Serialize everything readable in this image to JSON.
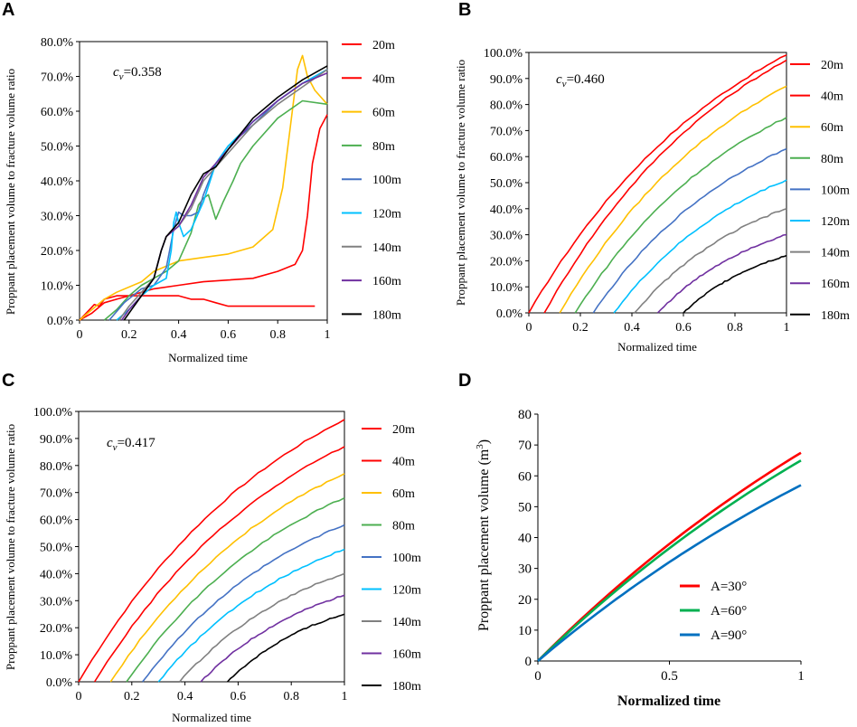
{
  "chart_data": [
    {
      "panel": "A",
      "type": "line",
      "annotation": "cv=0.358",
      "annotation_main": "c",
      "annotation_sub": "v",
      "annotation_rest": "=0.358",
      "xlabel": "Normalized time",
      "ylabel": "Proppant placement volume to fracture volume ratio",
      "xlim": [
        0,
        1
      ],
      "ylim": [
        0,
        80
      ],
      "xticks": [
        "0",
        "0.2",
        "0.4",
        "0.6",
        "0.8",
        "1"
      ],
      "yticks": [
        "0.0%",
        "10.0%",
        "20.0%",
        "30.0%",
        "40.0%",
        "50.0%",
        "60.0%",
        "70.0%",
        "80.0%"
      ],
      "series": [
        {
          "name": "20m",
          "color": "#ff0000",
          "points": [
            [
              0,
              0
            ],
            [
              0.04,
              3
            ],
            [
              0.06,
              4.5
            ],
            [
              0.08,
              4
            ],
            [
              0.1,
              6
            ],
            [
              0.15,
              7
            ],
            [
              0.3,
              7
            ],
            [
              0.4,
              7
            ],
            [
              0.45,
              6
            ],
            [
              0.5,
              6
            ],
            [
              0.55,
              5
            ],
            [
              0.6,
              4
            ],
            [
              0.7,
              4
            ],
            [
              0.8,
              4
            ],
            [
              0.95,
              4
            ]
          ]
        },
        {
          "name": "40m",
          "color": "#ff0000",
          "points": [
            [
              0,
              0
            ],
            [
              0.05,
              2
            ],
            [
              0.1,
              5
            ],
            [
              0.15,
              6
            ],
            [
              0.2,
              7
            ],
            [
              0.3,
              9
            ],
            [
              0.4,
              10
            ],
            [
              0.5,
              11
            ],
            [
              0.6,
              11.5
            ],
            [
              0.7,
              12
            ],
            [
              0.8,
              14
            ],
            [
              0.87,
              16
            ],
            [
              0.9,
              20
            ],
            [
              0.92,
              30
            ],
            [
              0.94,
              45
            ],
            [
              0.97,
              55
            ],
            [
              1,
              59
            ]
          ]
        },
        {
          "name": "60m",
          "color": "#ffc000",
          "points": [
            [
              0,
              0
            ],
            [
              0.05,
              3
            ],
            [
              0.1,
              6
            ],
            [
              0.15,
              8
            ],
            [
              0.25,
              11
            ],
            [
              0.3,
              14
            ],
            [
              0.4,
              17
            ],
            [
              0.5,
              18
            ],
            [
              0.6,
              19
            ],
            [
              0.7,
              21
            ],
            [
              0.78,
              26
            ],
            [
              0.82,
              38
            ],
            [
              0.85,
              55
            ],
            [
              0.88,
              72
            ],
            [
              0.9,
              76
            ],
            [
              0.92,
              70
            ],
            [
              0.95,
              66
            ],
            [
              1,
              62
            ]
          ]
        },
        {
          "name": "80m",
          "color": "#4caf50",
          "points": [
            [
              0.1,
              0
            ],
            [
              0.15,
              3
            ],
            [
              0.2,
              7
            ],
            [
              0.25,
              10
            ],
            [
              0.3,
              12
            ],
            [
              0.35,
              14
            ],
            [
              0.4,
              17
            ],
            [
              0.45,
              25
            ],
            [
              0.48,
              33
            ],
            [
              0.5,
              35
            ],
            [
              0.52,
              36
            ],
            [
              0.55,
              29
            ],
            [
              0.58,
              34
            ],
            [
              0.62,
              40
            ],
            [
              0.65,
              45
            ],
            [
              0.7,
              50
            ],
            [
              0.8,
              58
            ],
            [
              0.9,
              63
            ],
            [
              1,
              62
            ]
          ]
        },
        {
          "name": "100m",
          "color": "#4472c4",
          "points": [
            [
              0.12,
              0
            ],
            [
              0.18,
              5
            ],
            [
              0.25,
              9
            ],
            [
              0.3,
              10
            ],
            [
              0.35,
              15
            ],
            [
              0.38,
              26
            ],
            [
              0.4,
              31
            ],
            [
              0.42,
              30
            ],
            [
              0.45,
              30
            ],
            [
              0.48,
              31
            ],
            [
              0.5,
              36
            ],
            [
              0.55,
              45
            ],
            [
              0.6,
              50
            ],
            [
              0.7,
              56
            ],
            [
              0.8,
              63
            ],
            [
              0.9,
              68
            ],
            [
              1,
              72
            ]
          ]
        },
        {
          "name": "120m",
          "color": "#00c0ff",
          "points": [
            [
              0.15,
              0
            ],
            [
              0.2,
              3
            ],
            [
              0.25,
              7
            ],
            [
              0.3,
              10
            ],
            [
              0.35,
              12
            ],
            [
              0.37,
              20
            ],
            [
              0.38,
              28
            ],
            [
              0.39,
              31
            ],
            [
              0.4,
              28
            ],
            [
              0.42,
              24
            ],
            [
              0.45,
              26
            ],
            [
              0.5,
              34
            ],
            [
              0.55,
              45
            ],
            [
              0.6,
              50
            ],
            [
              0.7,
              57
            ],
            [
              0.8,
              63
            ],
            [
              0.9,
              68
            ],
            [
              1,
              72
            ]
          ]
        },
        {
          "name": "140m",
          "color": "#808080",
          "points": [
            [
              0.16,
              0
            ],
            [
              0.2,
              4
            ],
            [
              0.25,
              8
            ],
            [
              0.3,
              12
            ],
            [
              0.33,
              20
            ],
            [
              0.35,
              24
            ],
            [
              0.4,
              27
            ],
            [
              0.45,
              32
            ],
            [
              0.5,
              40
            ],
            [
              0.55,
              44
            ],
            [
              0.6,
              48
            ],
            [
              0.7,
              56
            ],
            [
              0.8,
              62
            ],
            [
              0.9,
              67
            ],
            [
              1,
              72
            ]
          ]
        },
        {
          "name": "160m",
          "color": "#7030a0",
          "points": [
            [
              0.17,
              0
            ],
            [
              0.2,
              3
            ],
            [
              0.25,
              7
            ],
            [
              0.3,
              12
            ],
            [
              0.33,
              20
            ],
            [
              0.35,
              24
            ],
            [
              0.4,
              27
            ],
            [
              0.45,
              33
            ],
            [
              0.5,
              41
            ],
            [
              0.55,
              45
            ],
            [
              0.6,
              49
            ],
            [
              0.7,
              57
            ],
            [
              0.8,
              63
            ],
            [
              0.9,
              68
            ],
            [
              1,
              71
            ]
          ]
        },
        {
          "name": "180m",
          "color": "#000000",
          "points": [
            [
              0.18,
              0
            ],
            [
              0.21,
              3
            ],
            [
              0.25,
              7
            ],
            [
              0.3,
              12
            ],
            [
              0.33,
              20
            ],
            [
              0.35,
              24
            ],
            [
              0.4,
              28
            ],
            [
              0.45,
              36
            ],
            [
              0.5,
              42
            ],
            [
              0.55,
              44
            ],
            [
              0.6,
              49
            ],
            [
              0.7,
              58
            ],
            [
              0.8,
              64
            ],
            [
              0.9,
              69
            ],
            [
              1,
              73
            ]
          ]
        }
      ]
    },
    {
      "panel": "B",
      "type": "line",
      "annotation": "cv=0.460",
      "annotation_main": "c",
      "annotation_sub": "v",
      "annotation_rest": "=0.460",
      "xlabel": "Normalized time",
      "ylabel": "Proppant placement volume to fracture volume ratio",
      "xlim": [
        0,
        1
      ],
      "ylim": [
        0,
        100
      ],
      "xticks": [
        "0",
        "0.2",
        "0.4",
        "0.6",
        "0.8",
        "1"
      ],
      "yticks": [
        "0.0%",
        "10.0%",
        "20.0%",
        "30.0%",
        "40.0%",
        "50.0%",
        "60.0%",
        "70.0%",
        "80.0%",
        "90.0%",
        "100.0%"
      ],
      "series": [
        {
          "name": "20m",
          "color": "#ff0000",
          "start": 0.0,
          "end": 99
        },
        {
          "name": "40m",
          "color": "#ff0000",
          "start": 0.06,
          "end": 97
        },
        {
          "name": "60m",
          "color": "#ffc000",
          "start": 0.12,
          "end": 87
        },
        {
          "name": "80m",
          "color": "#4caf50",
          "start": 0.18,
          "end": 75
        },
        {
          "name": "100m",
          "color": "#4472c4",
          "start": 0.25,
          "end": 63
        },
        {
          "name": "120m",
          "color": "#00c0ff",
          "start": 0.33,
          "end": 51
        },
        {
          "name": "140m",
          "color": "#808080",
          "start": 0.41,
          "end": 40
        },
        {
          "name": "160m",
          "color": "#7030a0",
          "start": 0.5,
          "end": 30
        },
        {
          "name": "180m",
          "color": "#000000",
          "start": 0.6,
          "end": 22
        }
      ]
    },
    {
      "panel": "C",
      "type": "line",
      "annotation": "cv=0.417",
      "annotation_main": "c",
      "annotation_sub": "v",
      "annotation_rest": "=0.417",
      "xlabel": "Normalized time",
      "ylabel": "Proppant placement volume to fracture volume ratio",
      "xlim": [
        0,
        1
      ],
      "ylim": [
        0,
        100
      ],
      "xticks": [
        "0",
        "0.2",
        "0.4",
        "0.6",
        "0.8",
        "1"
      ],
      "yticks": [
        "0.0%",
        "10.0%",
        "20.0%",
        "30.0%",
        "40.0%",
        "50.0%",
        "60.0%",
        "70.0%",
        "80.0%",
        "90.0%",
        "100.0%"
      ],
      "series": [
        {
          "name": "20m",
          "color": "#ff0000",
          "start": 0.0,
          "end": 97
        },
        {
          "name": "40m",
          "color": "#ff0000",
          "start": 0.06,
          "end": 87
        },
        {
          "name": "60m",
          "color": "#ffc000",
          "start": 0.12,
          "end": 77
        },
        {
          "name": "80m",
          "color": "#4caf50",
          "start": 0.18,
          "end": 68
        },
        {
          "name": "100m",
          "color": "#4472c4",
          "start": 0.24,
          "end": 58
        },
        {
          "name": "120m",
          "color": "#00c0ff",
          "start": 0.3,
          "end": 49
        },
        {
          "name": "140m",
          "color": "#808080",
          "start": 0.38,
          "end": 40
        },
        {
          "name": "160m",
          "color": "#7030a0",
          "start": 0.46,
          "end": 32
        },
        {
          "name": "180m",
          "color": "#000000",
          "start": 0.56,
          "end": 25
        }
      ]
    },
    {
      "panel": "D",
      "type": "line",
      "xlabel": "Normalized time",
      "ylabel_main": "Proppant placement volume (m",
      "ylabel_sup": "3",
      "ylabel_end": ")",
      "xlim": [
        0,
        1
      ],
      "ylim": [
        0,
        80
      ],
      "xticks": [
        "0",
        "0.5",
        "1"
      ],
      "yticks": [
        "0",
        "10",
        "20",
        "30",
        "40",
        "50",
        "60",
        "70",
        "80"
      ],
      "series": [
        {
          "name": "A=30°",
          "color": "#ff0000",
          "end": 67.5
        },
        {
          "name": "A=60°",
          "color": "#00b050",
          "end": 65
        },
        {
          "name": "A=90°",
          "color": "#0070c0",
          "end": 57
        }
      ]
    }
  ],
  "panel_letters": [
    "A",
    "B",
    "C",
    "D"
  ]
}
